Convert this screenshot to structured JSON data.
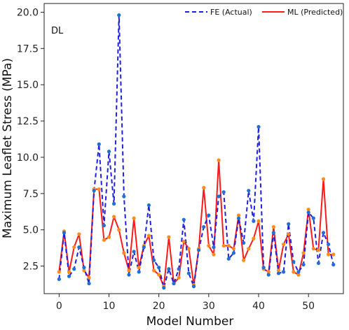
{
  "chart_data": {
    "type": "line",
    "title": "",
    "xlabel": "Model Number",
    "ylabel": "Maximum Leaflet Stress (MPa)",
    "xlim": [
      -3,
      57
    ],
    "ylim": [
      0.6,
      20.6
    ],
    "xticks": [
      0,
      10,
      20,
      30,
      40,
      50
    ],
    "xtick_labels": [
      "0",
      "10",
      "20",
      "30",
      "40",
      "50"
    ],
    "yticks": [
      2.5,
      5.0,
      7.5,
      10.0,
      12.5,
      15.0,
      17.5,
      20.0
    ],
    "ytick_labels": [
      "2.5",
      "5.0",
      "7.5",
      "10.0",
      "12.5",
      "15.0",
      "17.5",
      "20.0"
    ],
    "grid": false,
    "legend_position": "top-right",
    "annotation": "DL",
    "x": [
      0,
      1,
      2,
      3,
      4,
      5,
      6,
      7,
      8,
      9,
      10,
      11,
      12,
      13,
      14,
      15,
      16,
      17,
      18,
      19,
      20,
      21,
      22,
      23,
      24,
      25,
      26,
      27,
      28,
      29,
      30,
      31,
      32,
      33,
      34,
      35,
      36,
      37,
      38,
      39,
      40,
      41,
      42,
      43,
      44,
      45,
      46,
      47,
      48,
      49,
      50,
      51,
      52,
      53,
      54,
      55
    ],
    "series": [
      {
        "name": "FE (Actual)",
        "color": "#1f1fe0",
        "line_style": "dashed",
        "marker_color": "#1f6fd6",
        "values": [
          1.6,
          4.8,
          1.8,
          2.3,
          3.8,
          2.4,
          1.3,
          7.7,
          10.9,
          5.3,
          10.4,
          6.8,
          19.8,
          7.3,
          1.9,
          3.5,
          2.1,
          3.8,
          6.7,
          2.9,
          2.4,
          1.0,
          2.3,
          1.3,
          2.3,
          5.7,
          2.0,
          1.1,
          3.6,
          5.2,
          6.0,
          3.8,
          7.3,
          7.6,
          3.0,
          3.4,
          5.8,
          4.1,
          7.7,
          5.6,
          12.1,
          2.4,
          1.9,
          4.8,
          2.0,
          2.1,
          5.4,
          2.8,
          2.1,
          2.6,
          6.2,
          5.8,
          2.7,
          4.8,
          4.0,
          2.6
        ]
      },
      {
        "name": "ML (Predicted)",
        "color": "#ff1a1a",
        "line_style": "solid",
        "marker_color": "#ff8c1a",
        "values": [
          2.1,
          4.9,
          2.1,
          3.8,
          4.7,
          2.2,
          1.7,
          7.8,
          7.8,
          4.3,
          4.5,
          5.9,
          5.0,
          3.4,
          2.2,
          5.8,
          2.4,
          3.9,
          4.6,
          2.2,
          1.9,
          1.1,
          4.5,
          1.3,
          1.7,
          4.2,
          3.7,
          1.2,
          3.7,
          7.9,
          3.9,
          3.3,
          9.8,
          3.9,
          3.9,
          3.7,
          6.0,
          2.9,
          3.7,
          4.4,
          5.6,
          2.3,
          2.1,
          5.2,
          2.2,
          4.0,
          4.7,
          2.1,
          1.9,
          3.4,
          6.4,
          3.7,
          3.6,
          8.5,
          3.3,
          3.3
        ]
      }
    ]
  }
}
